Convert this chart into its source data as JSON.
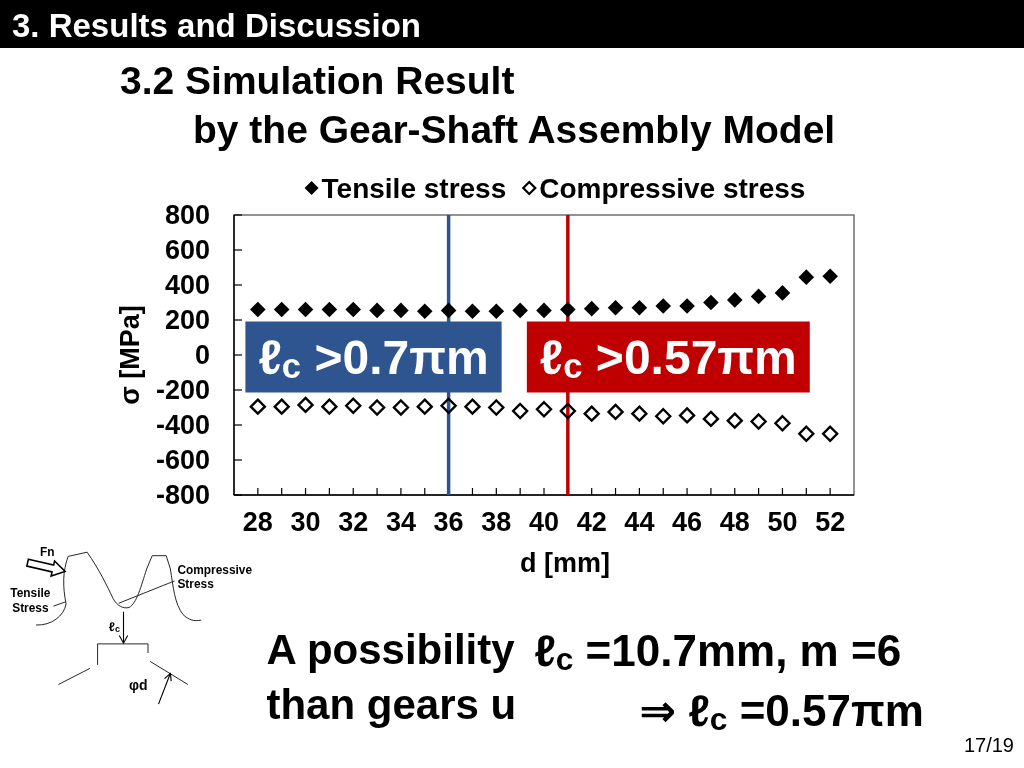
{
  "chart_data": {
    "type": "scatter",
    "title": "3.2 Simulation Result\nby the Gear-Shaft Assembly Model",
    "xlabel": "d [mm]",
    "ylabel": "σ [MPa]",
    "x": [
      28,
      29,
      30,
      31,
      32,
      33,
      34,
      35,
      36,
      37,
      38,
      39,
      40,
      41,
      42,
      43,
      44,
      45,
      46,
      47,
      48,
      49,
      50,
      51,
      52
    ],
    "series": [
      {
        "name": "Tensile stress",
        "color": "#000000",
        "values": [
          260,
          260,
          260,
          260,
          260,
          255,
          255,
          250,
          255,
          250,
          250,
          255,
          255,
          260,
          265,
          270,
          270,
          280,
          280,
          300,
          315,
          335,
          355,
          445,
          450
        ]
      },
      {
        "name": "Compressive stress",
        "color": "#000000",
        "values": [
          -295,
          -295,
          -285,
          -295,
          -290,
          -300,
          -300,
          -295,
          -290,
          -295,
          -300,
          -320,
          -310,
          -320,
          -335,
          -325,
          -335,
          -350,
          -345,
          -365,
          -375,
          -380,
          -390,
          -450,
          -450
        ]
      }
    ],
    "xlim": [
      27,
      53
    ],
    "xticks": [
      28,
      {
        "value": 29,
        "label": null
      },
      30,
      {
        "value": 31,
        "label": null
      },
      32,
      {
        "value": 33,
        "label": null
      },
      34,
      {
        "value": 35,
        "label": null
      },
      36,
      {
        "value": 37,
        "label": null
      },
      38,
      {
        "value": 39,
        "label": null
      },
      40,
      {
        "value": 41,
        "label": null
      },
      42,
      {
        "value": 43,
        "label": null
      },
      44,
      {
        "value": 45,
        "label": null
      },
      46,
      {
        "value": 47,
        "label": null
      },
      48,
      {
        "value": 49,
        "label": null
      },
      50,
      {
        "value": 51,
        "label": null
      },
      52
    ],
    "ylim": [
      -800,
      800
    ],
    "yticks": [
      -800,
      -600,
      -400,
      -200,
      0,
      200,
      400,
      600,
      800
    ],
    "marker": "diamond",
    "legend": "top",
    "ref_lines": [
      {
        "axis": "x",
        "value": 36,
        "label": "ℓ$_{c}$ >0.7πm",
        "color": "#2e5590"
      },
      {
        "axis": "x",
        "value": 41,
        "label": "ℓ$_{c}$ >0.57πm",
        "color": "#c00000"
      }
    ],
    "annotations": [
      "3. Results and Discussion",
      "A possibility\nthan gears u",
      "ℓ$_{c}$ =10.7mm, m =6",
      "⇒ ℓ$_{c}$ =0.57πm",
      "17/19",
      "Fn",
      "Compressive\nStress",
      "Tensile\nStress",
      "ℓ$_{c}$",
      "φd"
    ]
  }
}
